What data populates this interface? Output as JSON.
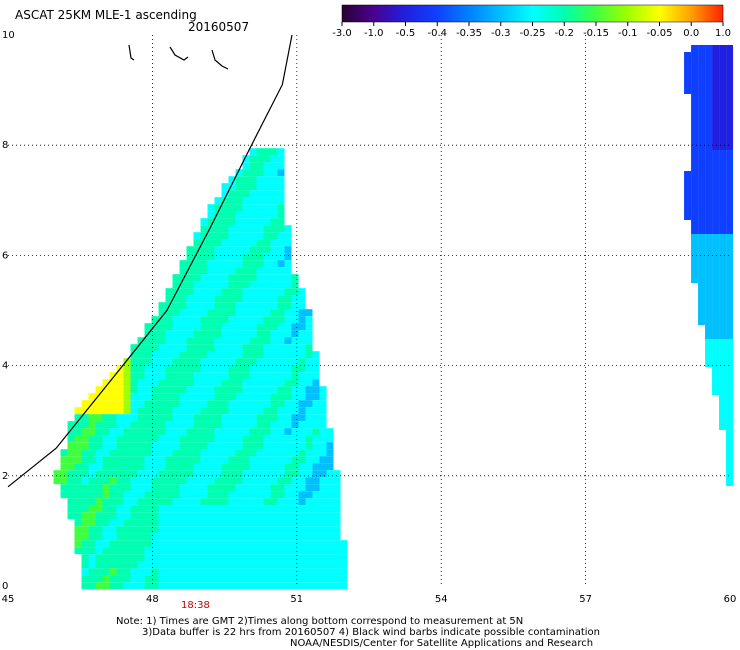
{
  "header": {
    "title": "ASCAT 25KM MLE-1 ascending",
    "date": "20160507"
  },
  "colorbar": {
    "labels": [
      "-3.0",
      "-1.0",
      "-0.5",
      "-0.4",
      "-0.35",
      "-0.3",
      "-0.25",
      "-0.2",
      "-0.15",
      "-0.1",
      "-0.05",
      "0.0",
      "1.0"
    ],
    "colors": [
      "#2a0030",
      "#4a0090",
      "#2020e0",
      "#1040ff",
      "#0080ff",
      "#00c0ff",
      "#00ffff",
      "#00ffb0",
      "#40ff40",
      "#a0ff00",
      "#ffff00",
      "#ffa000",
      "#ff2000"
    ]
  },
  "map": {
    "x_ticks": [
      "45",
      "48",
      "51",
      "54",
      "57",
      "60"
    ],
    "y_ticks": [
      "0",
      "2",
      "4",
      "6",
      "8",
      "10"
    ],
    "xlim": [
      45,
      60
    ],
    "ylim": [
      0,
      10
    ],
    "grid": true,
    "time_label": "18:38"
  },
  "footer": {
    "note_line1": "Note: 1) Times are GMT 2)Times along bottom correspond to measurement at 5N",
    "note_line2": "3)Data buffer is 22 hrs from 20160507 4) Black wind barbs indicate possible contamination",
    "note_line3": "NOAA/NESDIS/Center for Satellite Applications and Research"
  }
}
